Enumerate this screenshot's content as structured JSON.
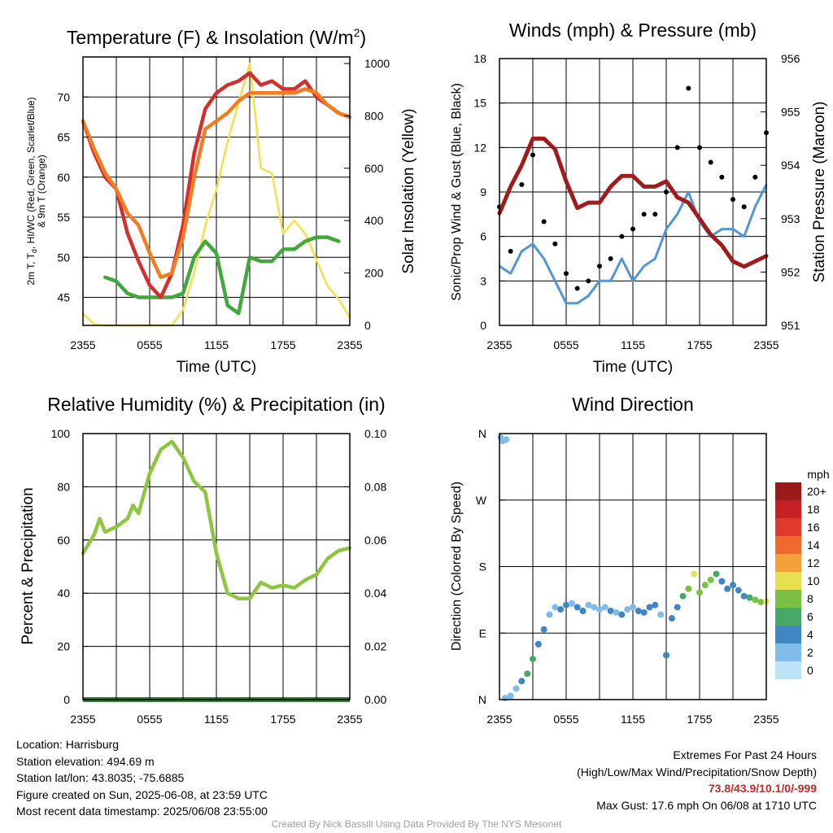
{
  "panels": {
    "temp": {
      "title": "Temperature (F) & Insolation (W/m",
      "title_sup": "2",
      "title_end": ")",
      "ylabel_left_line1": "2m T, T",
      "ylabel_left_sub": "d",
      "ylabel_left_line1_end": ", HI/WC (Red, Green, Scarlet/Blue)",
      "ylabel_left_line2": "& 9m T (Orange)",
      "ylabel_right": "Solar Insolation (Yellow)",
      "xlabel": "Time (UTC)"
    },
    "winds": {
      "title": "Winds (mph) & Pressure (mb)",
      "ylabel_left": "Sonic/Prop Wind & Gust (Blue, Black)",
      "ylabel_right": "Station Pressure (Maroon)",
      "xlabel": "Time (UTC)"
    },
    "rh": {
      "title": "Relative Humidity (%) & Precipitation (in)",
      "ylabel_left": "Percent & Precipitation"
    },
    "dir": {
      "title": "Wind Direction",
      "ylabel_left": "Direction (Colored By Speed)",
      "legend_title": "mph"
    }
  },
  "chart_data": [
    {
      "id": "temp",
      "type": "line",
      "title": "Temperature (F) & Insolation (W/m2)",
      "xlabel": "Time (UTC)",
      "x_ticks": [
        "2355",
        "0555",
        "1155",
        "1755",
        "2355"
      ],
      "xlim": [
        0,
        24
      ],
      "ylim_left": [
        41.5,
        75
      ],
      "y_ticks_left": [
        45,
        50,
        55,
        60,
        65,
        70
      ],
      "ylim_right": [
        0,
        1025
      ],
      "y_ticks_right": [
        0,
        200,
        400,
        600,
        800,
        1000
      ],
      "grid": true,
      "series": [
        {
          "name": "2m T",
          "color": "#d32f2f",
          "axis": "left",
          "style": "line",
          "x": [
            0,
            1,
            2,
            3,
            4,
            5,
            6,
            7,
            8,
            9,
            10,
            11,
            12,
            13,
            14,
            15,
            16,
            17,
            18,
            19,
            20,
            21,
            22,
            23,
            24
          ],
          "y": [
            67,
            63,
            60,
            58.5,
            53,
            49.5,
            46.5,
            45,
            48,
            54,
            63,
            68.5,
            70.5,
            71.5,
            72,
            73,
            71.5,
            72,
            71,
            71,
            72,
            70,
            69,
            68,
            67.5
          ]
        },
        {
          "name": "9m T",
          "color": "#f47c20",
          "axis": "left",
          "style": "line",
          "x": [
            0,
            1,
            2,
            3,
            4,
            5,
            6,
            7,
            8,
            9,
            10,
            11,
            12,
            13,
            14,
            15,
            16,
            17,
            18,
            19,
            20,
            21,
            22,
            23,
            24
          ],
          "y": [
            67,
            63.5,
            60.5,
            58.5,
            55.5,
            54,
            50.5,
            47.5,
            48,
            52.5,
            60,
            66,
            67,
            68,
            69.5,
            70.5,
            70.5,
            70.5,
            70.5,
            70.5,
            71,
            70.5,
            69,
            68,
            67.5
          ]
        },
        {
          "name": "Td",
          "color": "#43a83b",
          "axis": "left",
          "style": "line",
          "x": [
            2,
            3,
            4,
            5,
            6,
            7,
            8,
            9,
            10,
            11,
            12,
            13,
            14,
            15,
            16,
            17,
            18,
            19,
            20,
            21,
            22,
            23
          ],
          "y": [
            47.5,
            47,
            45.5,
            45,
            45,
            45,
            45,
            45.5,
            50,
            52,
            50.5,
            44,
            43,
            50,
            49.5,
            49.5,
            51,
            51,
            52,
            52.5,
            52.5,
            52
          ]
        },
        {
          "name": "Solar Insolation",
          "color": "#f5e04a",
          "axis": "right",
          "style": "line",
          "x": [
            0,
            1,
            2,
            3,
            4,
            5,
            6,
            7,
            8,
            9,
            10,
            11,
            12,
            13,
            14,
            15,
            16,
            17,
            18,
            19,
            20,
            21,
            22,
            23,
            24
          ],
          "y": [
            45,
            5,
            0,
            0,
            0,
            0,
            0,
            0,
            0,
            60,
            200,
            380,
            520,
            700,
            850,
            1000,
            600,
            580,
            350,
            400,
            350,
            250,
            150,
            100,
            30
          ]
        }
      ]
    },
    {
      "id": "winds",
      "type": "line",
      "title": "Winds (mph) & Pressure (mb)",
      "xlabel": "Time (UTC)",
      "x_ticks": [
        "2355",
        "0555",
        "1155",
        "1755",
        "2355"
      ],
      "xlim": [
        0,
        24
      ],
      "ylim_left": [
        0,
        18
      ],
      "y_ticks_left": [
        0,
        3,
        6,
        9,
        12,
        15,
        18
      ],
      "ylim_right": [
        951,
        956
      ],
      "y_ticks_right": [
        951,
        952,
        953,
        954,
        955,
        956
      ],
      "grid": true,
      "series": [
        {
          "name": "Sonic/Prop Wind",
          "color": "#4f97d6",
          "axis": "left",
          "style": "line",
          "x": [
            0,
            1,
            2,
            3,
            4,
            5,
            6,
            7,
            8,
            9,
            10,
            11,
            12,
            13,
            14,
            15,
            16,
            17,
            18,
            19,
            20,
            21,
            22,
            23,
            24
          ],
          "y": [
            4,
            3.5,
            5,
            5.5,
            4.5,
            3,
            1.5,
            1.5,
            2,
            3,
            3,
            4.5,
            3,
            4,
            4.5,
            6.5,
            7.5,
            9,
            7,
            6,
            6.5,
            6.5,
            6,
            8,
            9.5
          ]
        },
        {
          "name": "Gust",
          "color": "#000000",
          "axis": "left",
          "style": "scatter",
          "x": [
            0,
            1,
            2,
            3,
            4,
            5,
            6,
            7,
            8,
            9,
            10,
            11,
            12,
            13,
            14,
            15,
            16,
            17,
            18,
            19,
            20,
            21,
            22,
            23,
            24
          ],
          "y": [
            8,
            5,
            9.5,
            11.5,
            7,
            5.5,
            3.5,
            2.5,
            3,
            4,
            4.5,
            6,
            6.5,
            7.5,
            7.5,
            9,
            12,
            16,
            12,
            11,
            10,
            8.5,
            8,
            10,
            13
          ]
        },
        {
          "name": "Station Pressure",
          "color": "#a01c1c",
          "axis": "right",
          "style": "line",
          "x": [
            0,
            1,
            2,
            3,
            4,
            5,
            6,
            7,
            8,
            9,
            10,
            11,
            12,
            13,
            14,
            15,
            16,
            17,
            18,
            19,
            20,
            21,
            22,
            23,
            24
          ],
          "y": [
            953.1,
            953.6,
            954,
            954.5,
            954.5,
            954.3,
            953.7,
            953.2,
            953.3,
            953.3,
            953.6,
            953.8,
            953.8,
            953.6,
            953.6,
            953.7,
            953.4,
            953.3,
            953.0,
            952.7,
            952.5,
            952.2,
            952.1,
            952.2,
            952.3
          ]
        }
      ]
    },
    {
      "id": "rh",
      "type": "line",
      "title": "Relative Humidity (%) & Precipitation (in)",
      "xlabel": "",
      "x_ticks": [
        "2355",
        "0555",
        "1155",
        "1755",
        "2355"
      ],
      "xlim": [
        0,
        24
      ],
      "ylim_left": [
        0,
        100
      ],
      "y_ticks_left": [
        0,
        20,
        40,
        60,
        80,
        100
      ],
      "ylim_right": [
        0,
        0.1
      ],
      "y_ticks_right": [
        "0.00",
        "0.02",
        "0.04",
        "0.06",
        "0.08",
        "0.10"
      ],
      "grid": true,
      "series": [
        {
          "name": "Relative Humidity",
          "color": "#8dc63f",
          "axis": "left",
          "style": "line",
          "x": [
            0,
            1,
            1.5,
            2,
            3,
            4,
            4.5,
            5,
            6,
            7,
            8,
            9,
            10,
            11,
            12,
            13,
            14,
            15,
            16,
            17,
            18,
            19,
            20,
            21,
            22,
            23,
            24
          ],
          "y": [
            55,
            62,
            68,
            63,
            65,
            68,
            73,
            70,
            85,
            94,
            97,
            91,
            82,
            78,
            55,
            40,
            38,
            38,
            44,
            42,
            43,
            42,
            45,
            47,
            53,
            56,
            57
          ]
        },
        {
          "name": "Precipitation",
          "color": "#2e7d32",
          "axis": "right",
          "style": "line",
          "x": [
            0,
            24
          ],
          "y": [
            0,
            0
          ]
        }
      ]
    },
    {
      "id": "dir",
      "type": "scatter",
      "title": "Wind Direction",
      "xlabel": "",
      "x_ticks": [
        "2355",
        "0555",
        "1155",
        "1755",
        "2355"
      ],
      "xlim": [
        0,
        24
      ],
      "y_ticks": [
        "N",
        "E",
        "S",
        "W",
        "N"
      ],
      "ylim": [
        0,
        360
      ],
      "grid": true,
      "legend_title": "mph",
      "legend_placement": "right",
      "color_scale": [
        {
          "label": "0",
          "color": "#bde3f6"
        },
        {
          "label": "2",
          "color": "#7fbde8"
        },
        {
          "label": "4",
          "color": "#3f86c2"
        },
        {
          "label": "6",
          "color": "#48a868"
        },
        {
          "label": "8",
          "color": "#7ac143"
        },
        {
          "label": "10",
          "color": "#e6e14e"
        },
        {
          "label": "12",
          "color": "#f6a03c"
        },
        {
          "label": "14",
          "color": "#f06a2e"
        },
        {
          "label": "16",
          "color": "#e03a2c"
        },
        {
          "label": "18",
          "color": "#c62026"
        },
        {
          "label": "20+",
          "color": "#9a1a1a"
        }
      ],
      "x": [
        0.1,
        0.3,
        0.6,
        0.5,
        1.0,
        1.5,
        2.0,
        2.5,
        3.0,
        3.5,
        4.0,
        4.5,
        5.0,
        5.5,
        6.0,
        6.5,
        7.0,
        7.5,
        8.0,
        8.5,
        9.0,
        9.5,
        10.0,
        10.5,
        11.0,
        11.5,
        12.0,
        12.5,
        13.0,
        13.5,
        14.0,
        14.5,
        15.0,
        15.5,
        16.0,
        16.5,
        17.0,
        17.5,
        18.0,
        18.5,
        19.0,
        19.5,
        20.0,
        20.5,
        21.0,
        21.5,
        22.0,
        22.5,
        23.0,
        23.5,
        24.0
      ],
      "y": [
        355,
        350,
        352,
        2,
        5,
        15,
        25,
        35,
        55,
        75,
        95,
        115,
        125,
        122,
        128,
        130,
        125,
        120,
        128,
        125,
        122,
        125,
        120,
        118,
        115,
        122,
        125,
        120,
        118,
        125,
        128,
        115,
        60,
        110,
        125,
        140,
        150,
        170,
        145,
        155,
        162,
        170,
        160,
        150,
        155,
        148,
        140,
        138,
        135,
        132,
        133
      ],
      "speed": [
        2,
        2,
        2,
        2,
        2,
        2,
        4,
        6,
        6,
        3,
        3,
        2,
        2,
        3,
        3,
        2,
        3,
        3,
        1,
        2,
        2,
        2,
        3,
        2,
        3,
        2,
        2,
        3,
        4,
        3,
        4,
        2,
        4,
        3,
        4,
        6,
        8,
        10,
        7,
        8,
        7,
        5,
        4,
        3,
        4,
        4,
        4,
        6,
        8,
        7,
        9
      ]
    }
  ],
  "footer": {
    "location": "Location: Harrisburg",
    "elevation": "Station elevation: 494.69 m",
    "latlon": "Station lat/lon: 43.8035; -75.6885",
    "created": "Figure created on Sun, 2025-06-08, at 23:59 UTC",
    "recent": "Most recent data timestamp: 2025/06/08 23:55:00",
    "extremes_title": "Extremes For Past 24 Hours",
    "extremes_fields": "(High/Low/Max Wind/Precipitation/Snow Depth)",
    "extremes_values": "73.8/43.9/10.1/0/-999",
    "max_gust": "Max Gust: 17.6 mph On 06/08 at 1710 UTC",
    "credit": "Created By Nick Bassill Using Data Provided By The NYS Mesonet"
  }
}
